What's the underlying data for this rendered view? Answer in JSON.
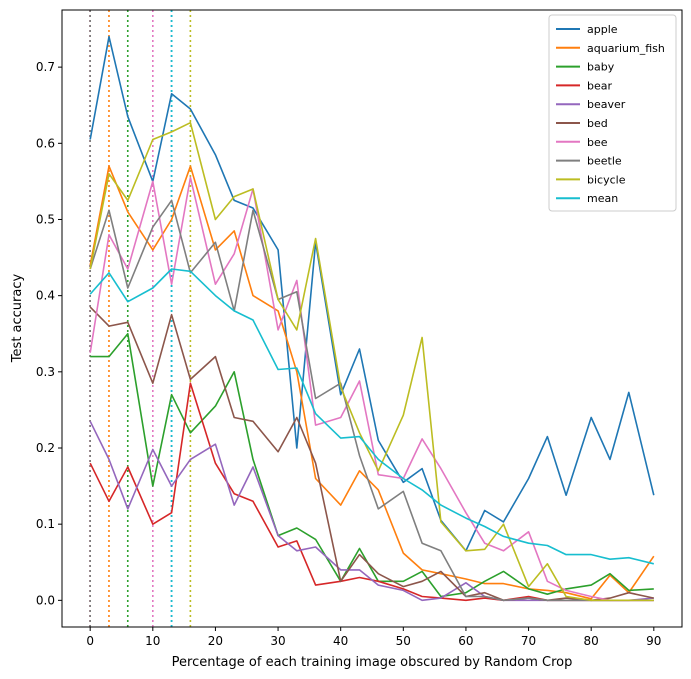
{
  "chart_data": {
    "type": "line",
    "title": "",
    "xlabel": "Percentage of each training image obscured by Random Crop",
    "ylabel": "Test accuracy",
    "xlim": [
      -4.5,
      94.5
    ],
    "ylim": [
      -0.035,
      0.775
    ],
    "xticks": [
      0,
      10,
      20,
      30,
      40,
      50,
      60,
      70,
      80,
      90
    ],
    "yticks": [
      0.0,
      0.1,
      0.2,
      0.3,
      0.4,
      0.5,
      0.6,
      0.7
    ],
    "x": [
      0,
      3,
      6,
      10,
      13,
      16,
      20,
      23,
      26,
      30,
      33,
      36,
      40,
      43,
      46,
      50,
      53,
      56,
      60,
      63,
      66,
      70,
      73,
      76,
      80,
      83,
      86,
      90
    ],
    "legend_position": "top-right",
    "series": [
      {
        "name": "apple",
        "color": "#1f77b4",
        "vline": 13,
        "values": [
          0.605,
          0.74,
          0.635,
          0.55,
          0.665,
          0.645,
          0.585,
          0.525,
          0.515,
          0.46,
          0.2,
          0.47,
          0.27,
          0.33,
          0.21,
          0.155,
          0.173,
          0.105,
          0.065,
          0.118,
          0.103,
          0.16,
          0.215,
          0.138,
          0.24,
          0.185,
          0.273,
          0.138
        ]
      },
      {
        "name": "aquarium_fish",
        "color": "#ff7f0e",
        "vline": 3,
        "values": [
          0.44,
          0.57,
          0.51,
          0.46,
          0.5,
          0.57,
          0.46,
          0.485,
          0.4,
          0.38,
          0.3,
          0.16,
          0.125,
          0.17,
          0.145,
          0.062,
          0.04,
          0.035,
          0.028,
          0.022,
          0.022,
          0.015,
          0.013,
          0.01,
          0.002,
          0.033,
          0.01,
          0.058
        ]
      },
      {
        "name": "baby",
        "color": "#2ca02c",
        "vline": 6,
        "values": [
          0.32,
          0.32,
          0.35,
          0.15,
          0.27,
          0.22,
          0.255,
          0.3,
          0.185,
          0.085,
          0.095,
          0.08,
          0.025,
          0.068,
          0.025,
          0.025,
          0.038,
          0.005,
          0.01,
          0.025,
          0.038,
          0.015,
          0.008,
          0.015,
          0.02,
          0.035,
          0.013,
          0.015
        ]
      },
      {
        "name": "bear",
        "color": "#d62728",
        "vline": 0,
        "values": [
          0.18,
          0.13,
          0.175,
          0.1,
          0.115,
          0.285,
          0.18,
          0.14,
          0.13,
          0.07,
          0.078,
          0.02,
          0.025,
          0.03,
          0.025,
          0.015,
          0.005,
          0.003,
          0.0,
          0.003,
          0.0,
          0.005,
          0.0,
          0.0,
          0.0,
          0.0,
          0.0,
          0.0
        ]
      },
      {
        "name": "beaver",
        "color": "#9467bd",
        "vline": 0,
        "values": [
          0.235,
          0.185,
          0.12,
          0.198,
          0.15,
          0.185,
          0.205,
          0.125,
          0.175,
          0.085,
          0.065,
          0.07,
          0.04,
          0.04,
          0.02,
          0.013,
          0.0,
          0.003,
          0.023,
          0.005,
          0.0,
          0.0,
          0.0,
          0.0,
          0.0,
          0.0,
          0.0,
          0.003
        ]
      },
      {
        "name": "bed",
        "color": "#8c564b",
        "vline": 0,
        "values": [
          0.385,
          0.36,
          0.365,
          0.285,
          0.375,
          0.29,
          0.32,
          0.24,
          0.235,
          0.195,
          0.24,
          0.18,
          0.025,
          0.06,
          0.035,
          0.018,
          0.025,
          0.038,
          0.005,
          0.01,
          0.0,
          0.003,
          0.0,
          0.003,
          0.0,
          0.003,
          0.01,
          0.003
        ]
      },
      {
        "name": "bee",
        "color": "#e377c2",
        "vline": 10,
        "values": [
          0.325,
          0.48,
          0.435,
          0.55,
          0.415,
          0.555,
          0.415,
          0.455,
          0.54,
          0.355,
          0.42,
          0.23,
          0.24,
          0.288,
          0.165,
          0.16,
          0.212,
          0.173,
          0.115,
          0.075,
          0.065,
          0.09,
          0.025,
          0.013,
          0.005,
          0.0,
          0.0,
          0.0
        ]
      },
      {
        "name": "beetle",
        "color": "#7f7f7f",
        "vline": 0,
        "values": [
          0.435,
          0.512,
          0.41,
          0.49,
          0.525,
          0.43,
          0.47,
          0.38,
          0.512,
          0.395,
          0.405,
          0.265,
          0.285,
          0.19,
          0.12,
          0.143,
          0.075,
          0.065,
          0.005,
          0.005,
          0.0,
          0.003,
          0.0,
          0.0,
          0.0,
          0.0,
          0.0,
          0.0
        ]
      },
      {
        "name": "bicycle",
        "color": "#bcbd22",
        "vline": 16,
        "values": [
          0.435,
          0.56,
          0.525,
          0.605,
          0.615,
          0.627,
          0.5,
          0.53,
          0.54,
          0.395,
          0.355,
          0.475,
          0.28,
          0.22,
          0.17,
          0.243,
          0.345,
          0.103,
          0.065,
          0.067,
          0.1,
          0.018,
          0.048,
          0.005,
          0.0,
          0.0,
          0.0,
          0.0
        ]
      },
      {
        "name": "mean",
        "color": "#17becf",
        "vline": 13,
        "values": [
          0.402,
          0.43,
          0.392,
          0.41,
          0.435,
          0.432,
          0.4,
          0.38,
          0.368,
          0.303,
          0.305,
          0.245,
          0.213,
          0.215,
          0.185,
          0.16,
          0.145,
          0.125,
          0.108,
          0.097,
          0.084,
          0.075,
          0.072,
          0.06,
          0.06,
          0.054,
          0.056,
          0.048
        ]
      }
    ]
  }
}
